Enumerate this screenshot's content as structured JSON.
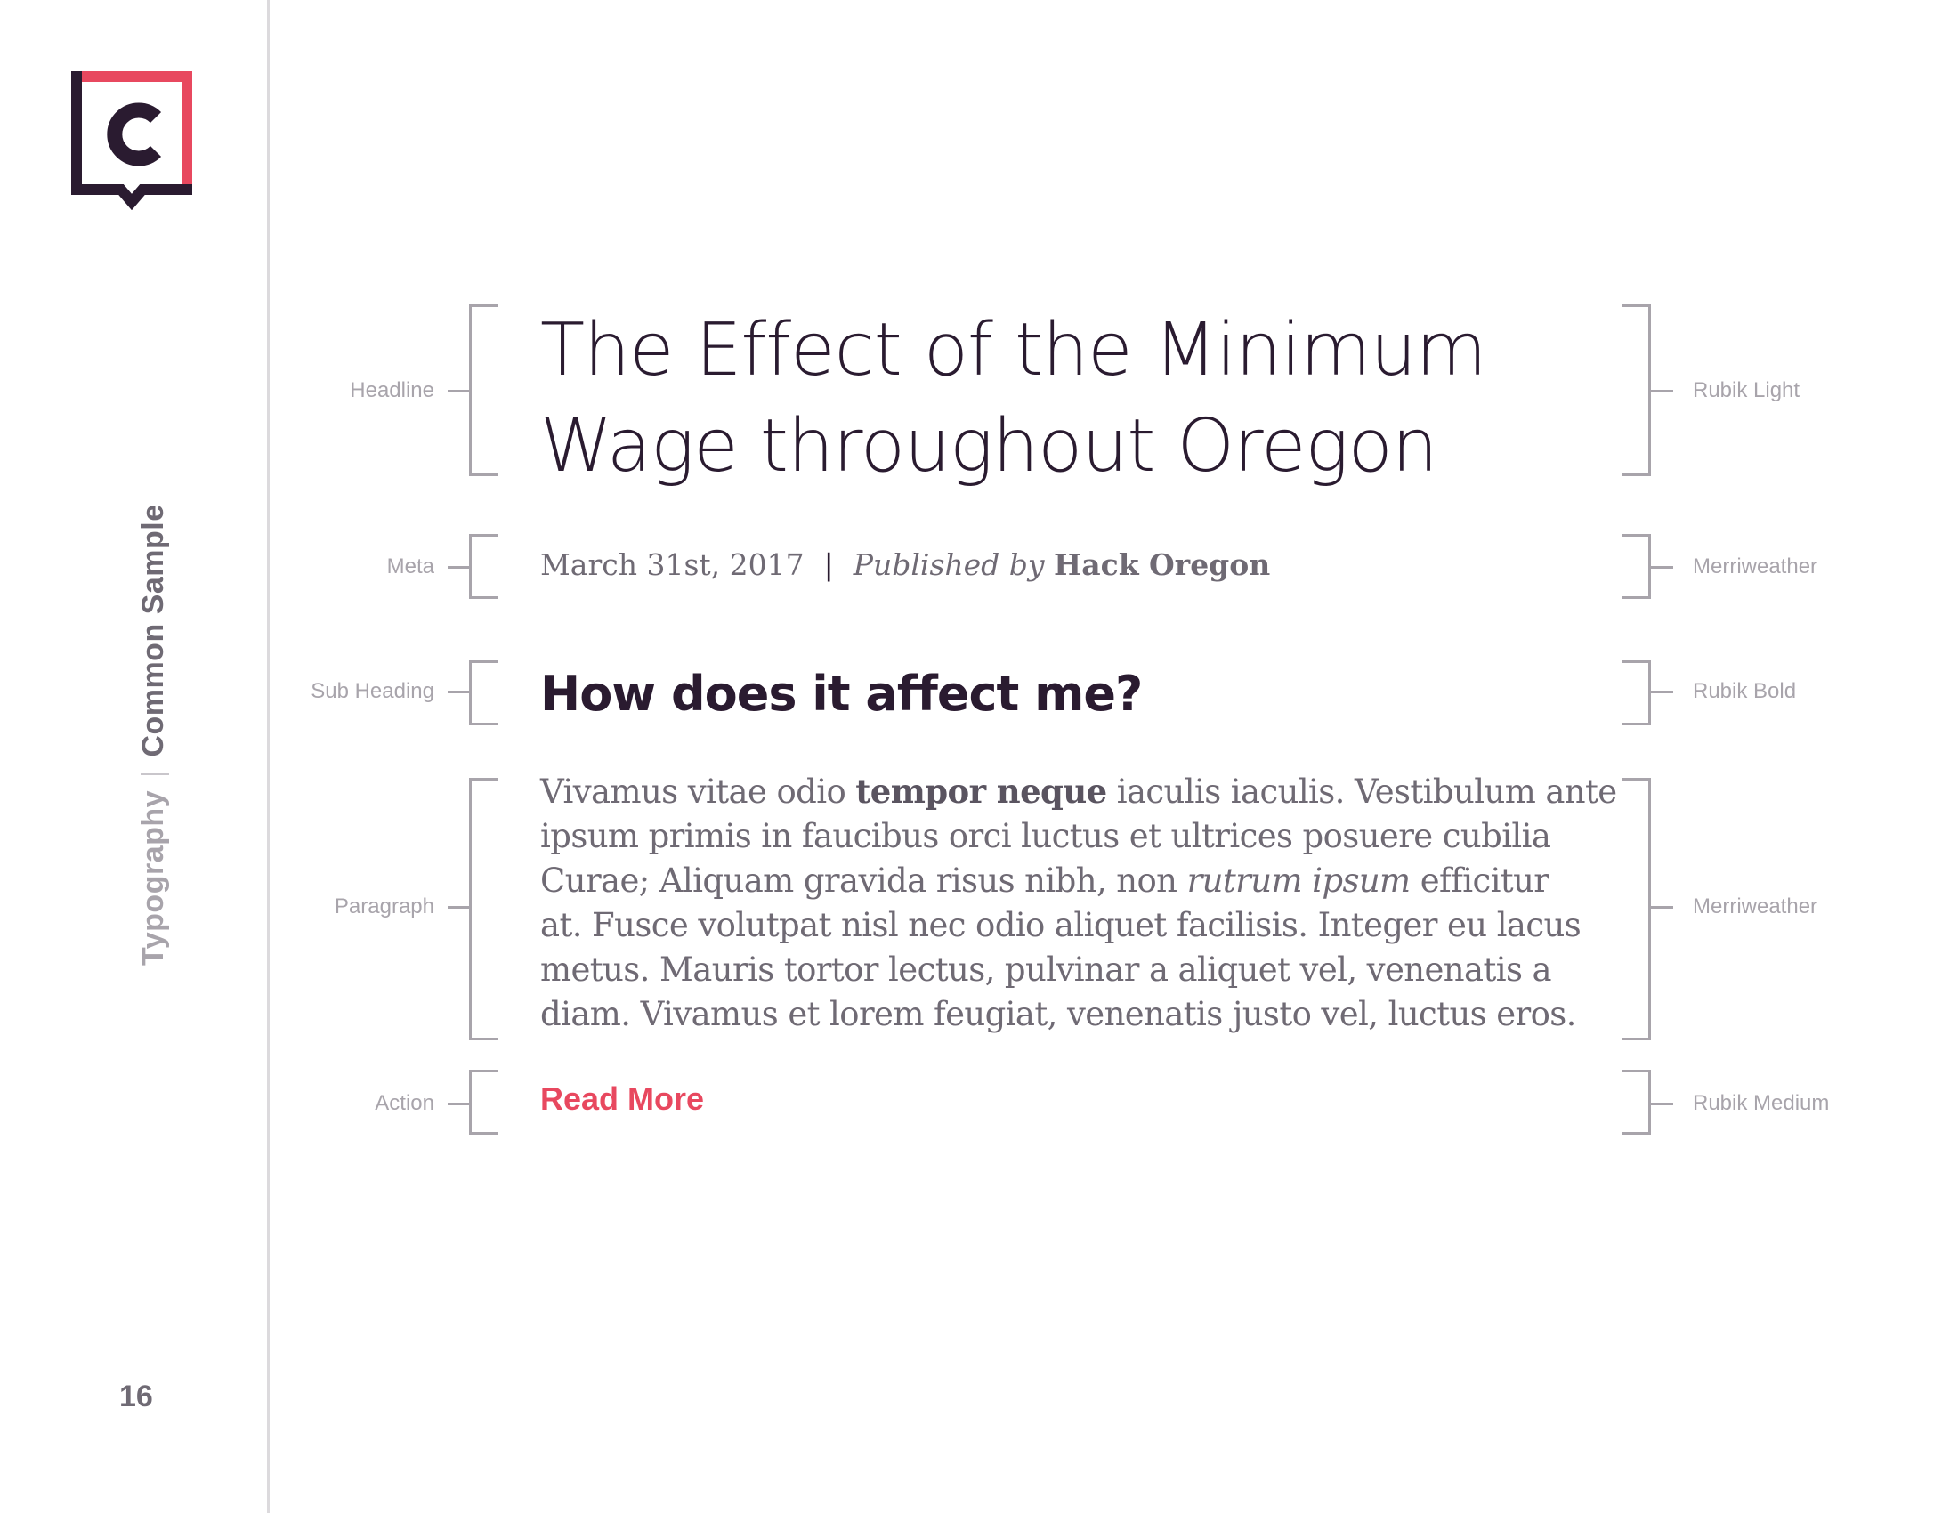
{
  "sidebar": {
    "section": "Typography",
    "separator": "|",
    "topic": "Common Sample",
    "page_number": "16"
  },
  "colors": {
    "accent": "#e8485f",
    "dark": "#2a1b30",
    "muted": "#a8a4ab",
    "text": "#6f6a74"
  },
  "specimen": {
    "headline": {
      "label": "Headline",
      "font": "Rubik Light",
      "lines": [
        "The Effect of the Minimum",
        "Wage throughout Oregon"
      ]
    },
    "meta": {
      "label": "Meta",
      "font": "Merriweather",
      "date": "March 31st, 2017",
      "separator": "|",
      "published_by": "Published by",
      "publisher": "Hack Oregon"
    },
    "subheading": {
      "label": "Sub Heading",
      "font": "Rubik Bold",
      "text": "How does it affect me?"
    },
    "paragraph": {
      "label": "Paragraph",
      "font": "Merriweather",
      "line1_a": "Vivamus vitae odio ",
      "line1_bold": "tempor neque",
      "line1_b": " iaculis iaculis. Vestibulum ante",
      "line2": "ipsum primis in faucibus orci luctus et ultrices posuere cubilia",
      "line3_a": "Curae; Aliquam gravida risus nibh, non ",
      "line3_italic": "rutrum ipsum",
      "line3_b": " efficitur",
      "line4": "at. Fusce volutpat nisl nec odio aliquet facilisis. Integer eu lacus",
      "line5": "metus. Mauris tortor lectus, pulvinar a aliquet vel, venenatis a",
      "line6": "diam. Vivamus et lorem feugiat, venenatis justo vel, luctus eros."
    },
    "action": {
      "label": "Action",
      "font": "Rubik Medium",
      "text": "Read More"
    }
  }
}
